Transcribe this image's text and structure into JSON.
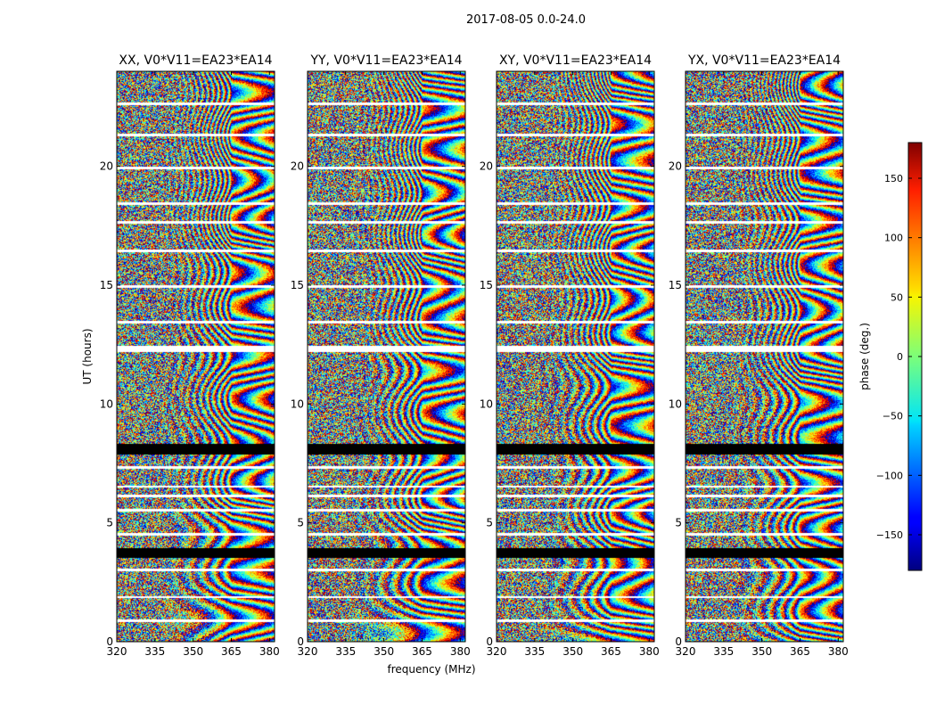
{
  "figure": {
    "suptitle": "2017-08-05 0.0-24.0",
    "xlabel": "frequency (MHz)",
    "ylabel": "UT (hours)"
  },
  "chart_data": {
    "type": "heatmap",
    "xlim": [
      320,
      382
    ],
    "ylim": [
      0,
      24
    ],
    "xticks": [
      320,
      335,
      350,
      365,
      380
    ],
    "yticks": [
      0,
      5,
      10,
      15,
      20
    ],
    "grid": false,
    "colormap": "jet",
    "flagged_color": "#000000",
    "missing_color": "#ffffff",
    "flagged_time_ranges_hours": [
      [
        3.55,
        3.95
      ],
      [
        7.9,
        8.35
      ]
    ],
    "missing_time_ranges_hours": [
      [
        0.85,
        0.95
      ],
      [
        1.85,
        1.95
      ],
      [
        3.0,
        3.1
      ],
      [
        4.5,
        4.6
      ],
      [
        5.5,
        5.6
      ],
      [
        6.1,
        6.2
      ],
      [
        6.5,
        6.6
      ],
      [
        7.3,
        7.4
      ],
      [
        12.2,
        12.45
      ],
      [
        13.4,
        13.5
      ],
      [
        14.9,
        15.0
      ],
      [
        16.4,
        16.5
      ],
      [
        17.6,
        17.7
      ],
      [
        18.4,
        18.5
      ],
      [
        19.9,
        20.0
      ],
      [
        21.3,
        21.4
      ],
      [
        22.6,
        22.7
      ]
    ],
    "panels": [
      {
        "title": "XX, V0*V11=EA23*EA14",
        "noise_amplitude": 1.0
      },
      {
        "title": "YY, V0*V11=EA23*EA14",
        "noise_amplitude": 1.0
      },
      {
        "title": "XY, V0*V11=EA23*EA14",
        "noise_amplitude": 1.0
      },
      {
        "title": "YX, V0*V11=EA23*EA14",
        "noise_amplitude": 1.0
      }
    ],
    "colorbar": {
      "label": "phase (deg.)",
      "range": [
        -180,
        180
      ],
      "ticks": [
        150,
        100,
        50,
        0,
        -50,
        -100,
        -150
      ],
      "tick_labels": [
        "150",
        "100",
        "50",
        "0",
        "−50",
        "−100",
        "−150"
      ]
    }
  }
}
